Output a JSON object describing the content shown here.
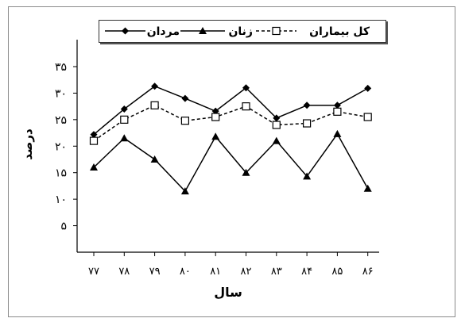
{
  "chart_data": {
    "type": "line",
    "title": "",
    "xlabel": "سال",
    "ylabel": "درصد",
    "categories": [
      "۷۷",
      "۷۸",
      "۷۹",
      "۸۰",
      "۸۱",
      "۸۲",
      "۸۳",
      "۸۴",
      "۸۵",
      "۸۶"
    ],
    "ylim": [
      0,
      35
    ],
    "yticks": [
      5,
      10,
      15,
      20,
      25,
      30,
      35
    ],
    "ytick_labels": [
      "۵",
      "۱۰",
      "۱۵",
      "۲۰",
      "۲۵",
      "۳۰",
      "۳۵"
    ],
    "grid": false,
    "legend_position": "top",
    "series": [
      {
        "name": "مردان",
        "marker": "diamond",
        "line": "solid",
        "color": "#000000",
        "values": [
          22.2,
          27,
          31.3,
          29,
          26.6,
          31,
          25.3,
          27.7,
          27.7,
          30.9
        ]
      },
      {
        "name": "زنان",
        "marker": "triangle",
        "line": "solid",
        "color": "#000000",
        "values": [
          16,
          21.5,
          17.5,
          11.5,
          21.8,
          15,
          21,
          14.3,
          22.3,
          12
        ]
      },
      {
        "name": "کل بیماران",
        "marker": "square-open",
        "line": "dashed",
        "color": "#000000",
        "values": [
          21,
          25,
          27.7,
          24.8,
          25.5,
          27.5,
          24,
          24.3,
          26.5,
          25.5
        ]
      }
    ]
  }
}
